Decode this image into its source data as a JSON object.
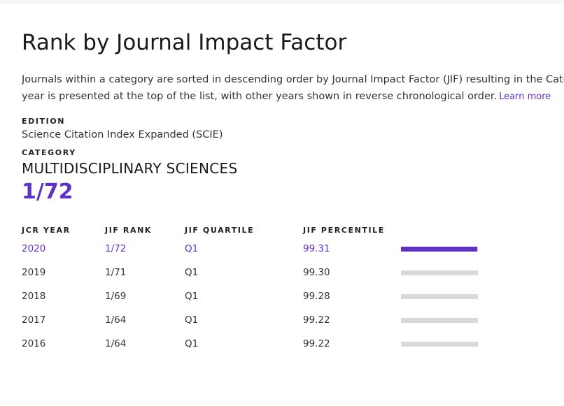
{
  "page": {
    "title": "Rank by Journal Impact Factor",
    "description_line1": "Journals within a category are sorted in descending order by Journal Impact Factor (JIF) resulting in the Category",
    "description_line2": "year is presented at the top of the list, with other years shown in reverse chronological order.",
    "learn_more": "Learn more"
  },
  "edition": {
    "label": "EDITION",
    "value": "Science Citation Index Expanded (SCIE)"
  },
  "category": {
    "label": "CATEGORY",
    "value": "MULTIDISCIPLINARY SCIENCES",
    "rank": "1/72"
  },
  "table": {
    "headers": [
      "JCR YEAR",
      "JIF RANK",
      "JIF QUARTILE",
      "JIF PERCENTILE"
    ],
    "rows": [
      {
        "year": "2020",
        "rank": "1/72",
        "quartile": "Q1",
        "percentile": "99.31",
        "current": true
      },
      {
        "year": "2019",
        "rank": "1/71",
        "quartile": "Q1",
        "percentile": "99.30",
        "current": false
      },
      {
        "year": "2018",
        "rank": "1/69",
        "quartile": "Q1",
        "percentile": "99.28",
        "current": false
      },
      {
        "year": "2017",
        "rank": "1/64",
        "quartile": "Q1",
        "percentile": "99.22",
        "current": false
      },
      {
        "year": "2016",
        "rank": "1/64",
        "quartile": "Q1",
        "percentile": "99.22",
        "current": false
      }
    ]
  },
  "colors": {
    "accent": "#5e33bf",
    "bar_inactive": "#d9d9d9"
  }
}
